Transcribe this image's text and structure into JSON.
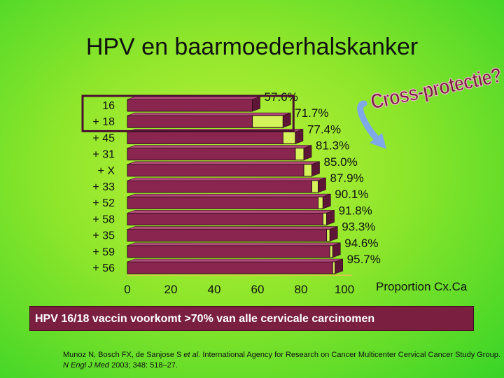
{
  "title": "HPV en baarmoederhalskanker",
  "cross_label": "Cross-protectie?",
  "conclusion": "HPV 16/18 vaccin voorkomt >70% van alle cervicale carcinomen",
  "reference": {
    "part1": "Munoz N, Bosch FX, de Sanjose S ",
    "etal": "et al.",
    "part2": " International Agency for Research on Cancer Multicenter Cervical Cancer Study Group. ",
    "journal": "N Engl J Med",
    "part3": " 2003; 348: 518–27."
  },
  "colors": {
    "bar": "#8a2550",
    "bar_top": "#b04a78",
    "increment": "#d4f25a",
    "highlight_box": "#4a1030",
    "cross_text": "#7a1f3f"
  },
  "chart_data": {
    "type": "bar",
    "orientation": "horizontal",
    "categories": [
      "16",
      "+ 18",
      "+ 45",
      "+ 31",
      "+ X",
      "+ 33",
      "+ 52",
      "+ 58",
      "+ 35",
      "+ 59",
      "+ 56"
    ],
    "values": [
      57.6,
      71.7,
      77.4,
      81.3,
      85.0,
      87.9,
      90.1,
      91.8,
      93.3,
      94.6,
      95.7
    ],
    "labels": [
      "57.6%",
      "71.7%",
      "77.4%",
      "81.3%",
      "85.0%",
      "87.9%",
      "90.1%",
      "91.8%",
      "93.3%",
      "94.6%",
      "95.7%"
    ],
    "xticks": [
      "0",
      "20",
      "40",
      "60",
      "80",
      "100"
    ],
    "xlabel": "Proportion Cx.Ca",
    "xlim": [
      0,
      100
    ],
    "highlighted_categories": [
      "16",
      "+ 18"
    ]
  }
}
